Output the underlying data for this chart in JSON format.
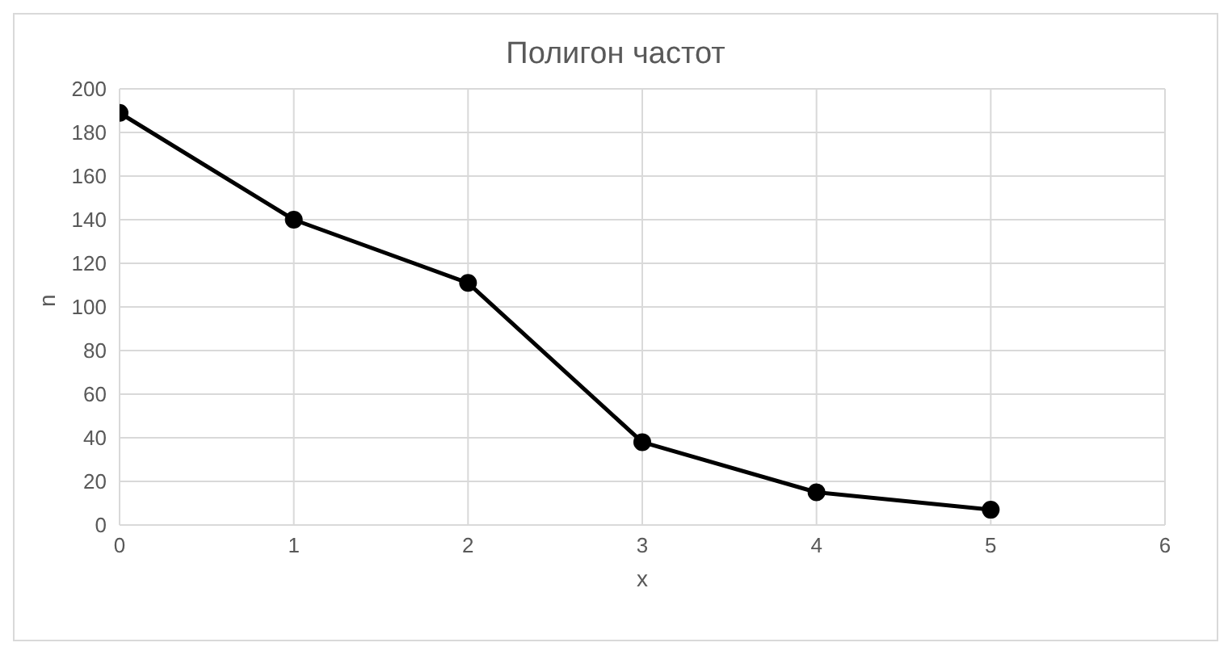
{
  "chart_data": {
    "type": "line",
    "title": "Полигон частот",
    "xlabel": "x",
    "ylabel": "n",
    "x": [
      0,
      1,
      2,
      3,
      4,
      5
    ],
    "series": [
      {
        "color": "#000000",
        "values": [
          189,
          140,
          111,
          38,
          15,
          7
        ]
      }
    ],
    "xlim": [
      0,
      6
    ],
    "xticks": [
      0,
      1,
      2,
      3,
      4,
      5,
      6
    ],
    "ylim": [
      0,
      200
    ],
    "yticks": [
      0,
      20,
      40,
      60,
      80,
      100,
      120,
      140,
      160,
      180,
      200
    ],
    "grid": true,
    "marker": "circle",
    "line_style": "solid"
  }
}
